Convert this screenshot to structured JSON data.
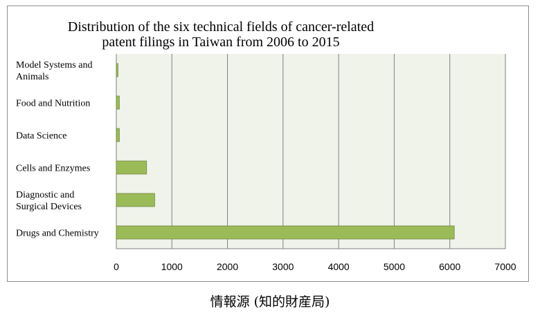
{
  "caption": "情報源 (知的財産局)",
  "chart_data": {
    "type": "bar",
    "orientation": "horizontal",
    "title_lines": [
      "Distribution of the six technical fields of cancer-related",
      "patent filings in Taiwan from 2006 to 2015"
    ],
    "categories": [
      [
        "Model Systems and",
        "Animals"
      ],
      [
        "Food and Nutrition"
      ],
      [
        "Data Science"
      ],
      [
        "Cells and Enzymes"
      ],
      [
        "Diagnostic and",
        "Surgical Devices"
      ],
      [
        "Drugs and Chemistry"
      ]
    ],
    "values": [
      30,
      55,
      55,
      545,
      690,
      6080
    ],
    "xlim": [
      0,
      7000
    ],
    "xticks": [
      0,
      1000,
      2000,
      3000,
      4000,
      5000,
      6000,
      7000
    ],
    "xticks_labels": [
      "0",
      "1000",
      "2000",
      "3000",
      "4000",
      "5000",
      "6000",
      "7000"
    ],
    "grid": "vertical",
    "colors": {
      "bar": "#9bbb59",
      "bar_edge": "#71893f",
      "plot_bg": "#eff3ea",
      "grid": "#7f7f7f"
    }
  }
}
